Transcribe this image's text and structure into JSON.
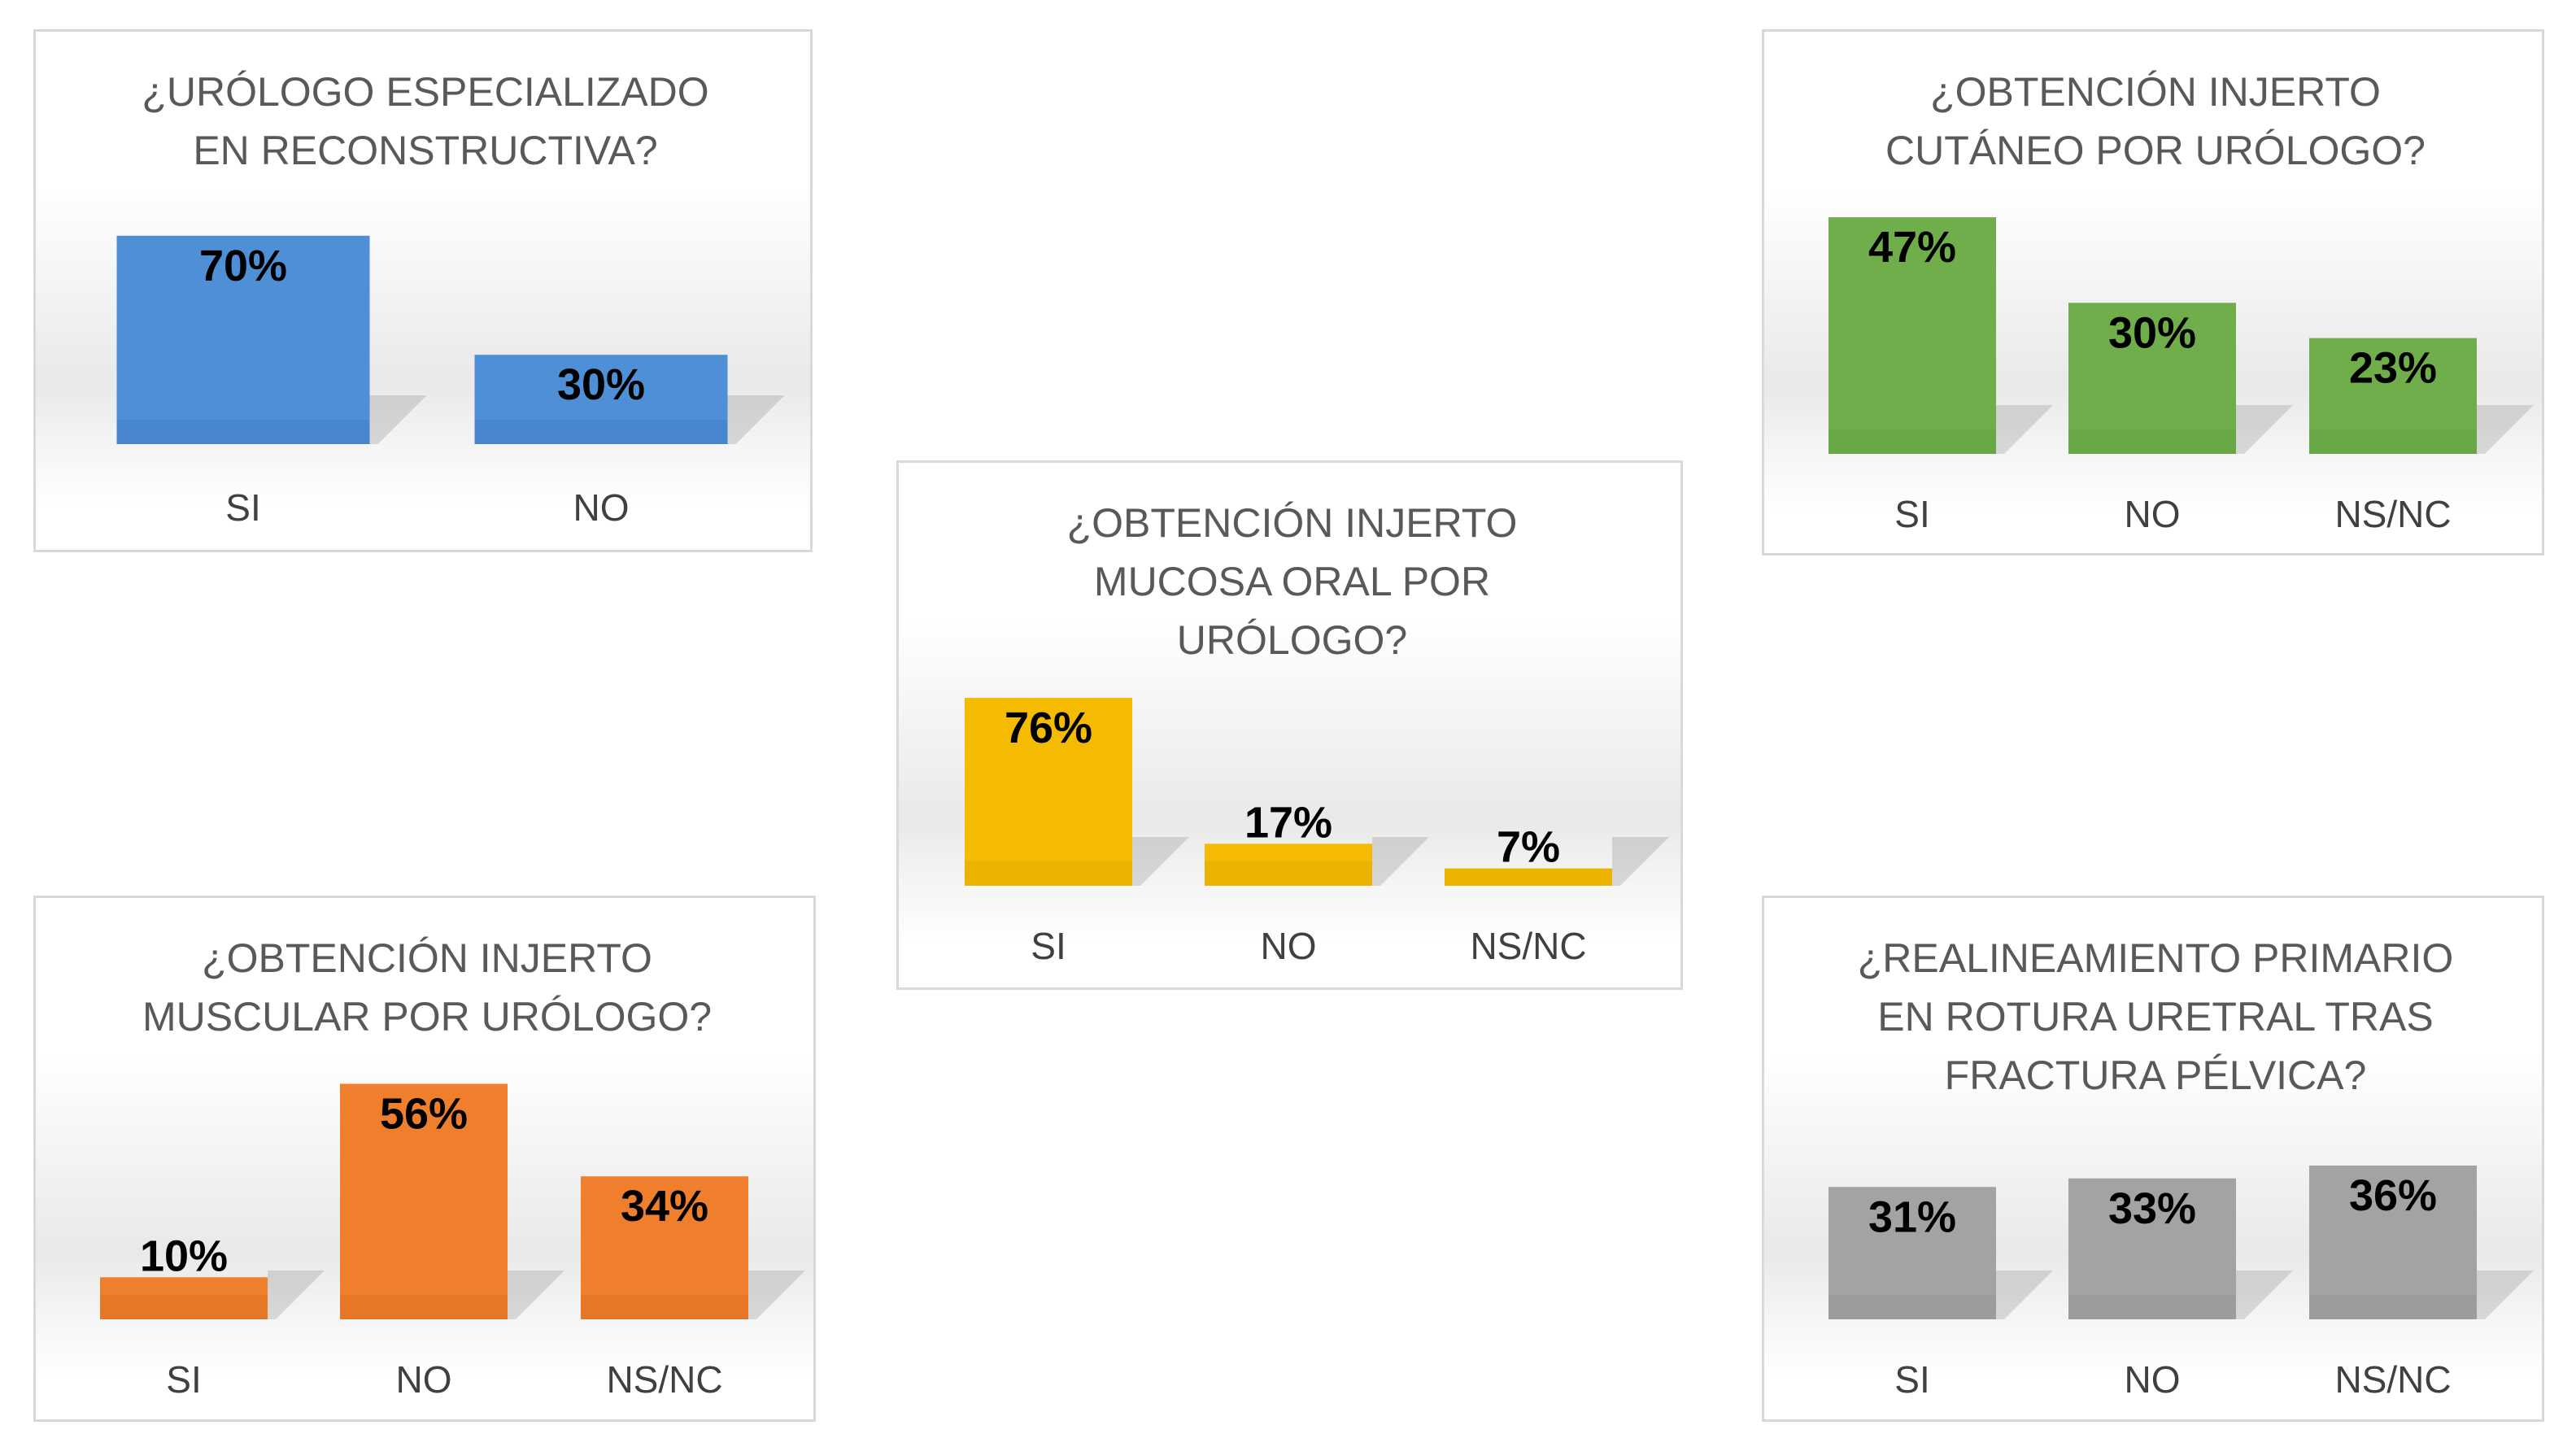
{
  "charts": [
    {
      "title_lines": [
        "¿URÓLOGO ESPECIALIZADO",
        "EN RECONSTRUCTIVA?"
      ],
      "color": "#4f8fd6",
      "shade": "#3d79c2"
    },
    {
      "title_lines": [
        "¿OBTENCIÓN INJERTO",
        "CUTÁNEO POR URÓLOGO?"
      ],
      "color": "#6fae4a",
      "shade": "#5c9a3b"
    },
    {
      "title_lines": [
        "¿OBTENCIÓN INJERTO",
        "MUCOSA ORAL POR",
        "URÓLOGO?"
      ],
      "color": "#f5bb00",
      "shade": "#dca600"
    },
    {
      "title_lines": [
        "¿OBTENCIÓN INJERTO",
        "MUSCULAR POR URÓLOGO?"
      ],
      "color": "#ef7f2d",
      "shade": "#d66b1d"
    },
    {
      "title_lines": [
        "¿REALINEAMIENTO PRIMARIO",
        "EN ROTURA URETRAL TRAS",
        "FRACTURA PÉLVICA?"
      ],
      "color": "#a3a3a3",
      "shade": "#8e8e8e"
    }
  ],
  "chart_data": [
    {
      "type": "bar",
      "title": "¿URÓLOGO ESPECIALIZADO EN RECONSTRUCTIVA?",
      "categories": [
        "SI",
        "NO"
      ],
      "values": [
        70,
        30
      ],
      "labels": [
        "70%",
        "30%"
      ],
      "legend": "none",
      "grid": false
    },
    {
      "type": "bar",
      "title": "¿OBTENCIÓN INJERTO CUTÁNEO POR URÓLOGO?",
      "categories": [
        "SI",
        "NO",
        "NS/NC"
      ],
      "values": [
        47,
        30,
        23
      ],
      "labels": [
        "47%",
        "30%",
        "23%"
      ],
      "legend": "none",
      "grid": false
    },
    {
      "type": "bar",
      "title": "¿OBTENCIÓN INJERTO MUCOSA ORAL POR URÓLOGO?",
      "categories": [
        "SI",
        "NO",
        "NS/NC"
      ],
      "values": [
        76,
        17,
        7
      ],
      "labels": [
        "76%",
        "17%",
        "7%"
      ],
      "legend": "none",
      "grid": false
    },
    {
      "type": "bar",
      "title": "¿OBTENCIÓN INJERTO MUSCULAR POR URÓLOGO?",
      "categories": [
        "SI",
        "NO",
        "NS/NC"
      ],
      "values": [
        10,
        56,
        34
      ],
      "labels": [
        "10%",
        "56%",
        "34%"
      ],
      "legend": "none",
      "grid": false
    },
    {
      "type": "bar",
      "title": "¿REALINEAMIENTO PRIMARIO EN ROTURA URETRAL TRAS FRACTURA PÉLVICA?",
      "categories": [
        "SI",
        "NO",
        "NS/NC"
      ],
      "values": [
        31,
        33,
        36
      ],
      "labels": [
        "31%",
        "33%",
        "36%"
      ],
      "legend": "none",
      "grid": false
    }
  ]
}
